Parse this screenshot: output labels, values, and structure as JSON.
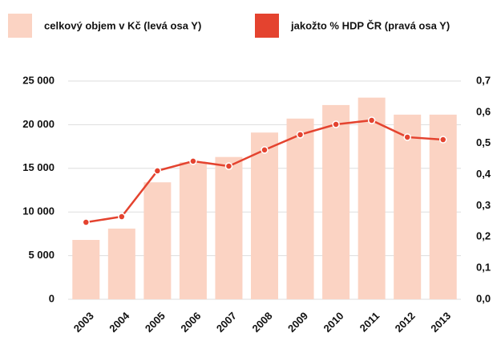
{
  "chart_data": {
    "type": "bar_line",
    "categories": [
      "2003",
      "2004",
      "2005",
      "2006",
      "2007",
      "2008",
      "2009",
      "2010",
      "2011",
      "2012",
      "2013"
    ],
    "series": [
      {
        "name": "celkový objem v Kč (levá osa Y)",
        "color": "#fbd3c3",
        "type": "bar",
        "values": [
          6800,
          8100,
          13400,
          15700,
          16300,
          19100,
          20700,
          22250,
          23100,
          21150,
          21150
        ]
      },
      {
        "name": "jakožto % HDP ČR (pravá osa Y)",
        "color": "#e4432f",
        "type": "line",
        "axis": "y2",
        "values": [
          0.247,
          0.265,
          0.412,
          0.443,
          0.427,
          0.479,
          0.528,
          0.561,
          0.574,
          0.52,
          0.512
        ]
      }
    ],
    "ylim": [
      0,
      25000
    ],
    "yticks": [
      {
        "value": 0,
        "label": "0"
      },
      {
        "value": 5000,
        "label": "5 000"
      },
      {
        "value": 10000,
        "label": "10 000"
      },
      {
        "value": 15000,
        "label": "15 000"
      },
      {
        "value": 20000,
        "label": "20 000"
      },
      {
        "value": 25000,
        "label": "25 000"
      }
    ],
    "y2lim": [
      0,
      0.7
    ],
    "y2ticks": [
      {
        "value": 0,
        "label": "0,0"
      },
      {
        "value": 0.1,
        "label": "0,1"
      },
      {
        "value": 0.2,
        "label": "0,2"
      },
      {
        "value": 0.3,
        "label": "0,3"
      },
      {
        "value": 0.4,
        "label": "0,4"
      },
      {
        "value": 0.5,
        "label": "0,5"
      },
      {
        "value": 0.6,
        "label": "0,6"
      },
      {
        "value": 0.7,
        "label": "0,7"
      }
    ],
    "grid": true
  }
}
